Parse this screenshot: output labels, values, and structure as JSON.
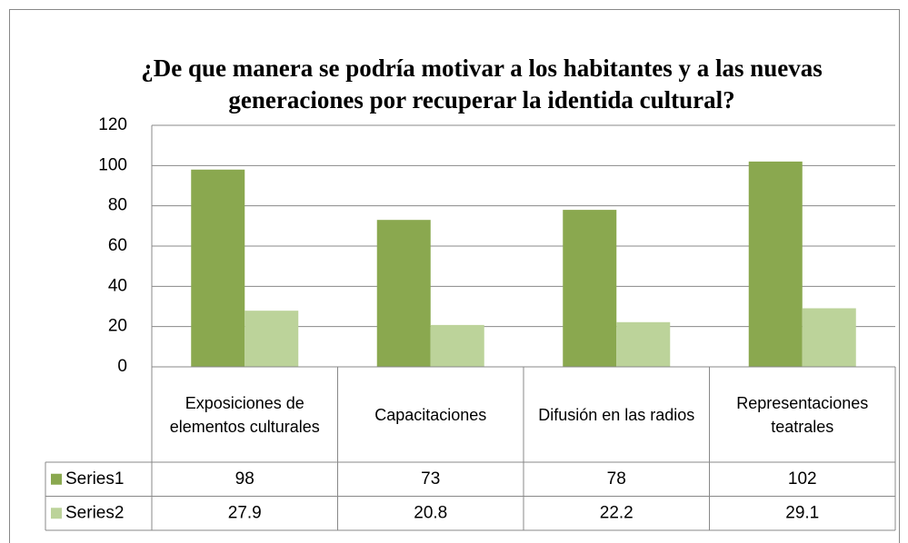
{
  "chart_data": {
    "type": "bar",
    "title": "¿De que manera se podría motivar a los habitantes y a las nuevas generaciones por recuperar la identida cultural?",
    "categories": [
      "Exposiciones de elementos culturales",
      "Capacitaciones",
      "Difusión en las radios",
      "Representaciones teatrales"
    ],
    "series": [
      {
        "name": "Series1",
        "color": "#8aa84f",
        "values": [
          98,
          73,
          78,
          102
        ]
      },
      {
        "name": "Series2",
        "color": "#bcd39a",
        "values": [
          27.9,
          20.8,
          22.2,
          29.1
        ]
      }
    ],
    "ylim": [
      0,
      120
    ],
    "yticks": [
      0,
      20,
      40,
      60,
      80,
      100,
      120
    ],
    "grid": true,
    "data_table": true
  }
}
